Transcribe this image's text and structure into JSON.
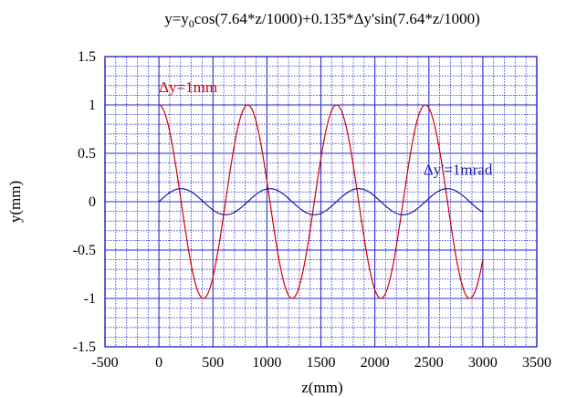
{
  "chart_data": {
    "type": "line",
    "title": {
      "pre": "y=y",
      "sub": "0",
      "post": "cos(7.64*z/1000)+0.135*Δy'sin(7.64*z/1000)"
    },
    "xlabel": "z(mm)",
    "ylabel": "y(mm)",
    "xlim": [
      -500,
      3500
    ],
    "ylim": [
      -1.5,
      1.5
    ],
    "xticks": [
      -500,
      0,
      500,
      1000,
      1500,
      2000,
      2500,
      3000,
      3500
    ],
    "xtick_labels": [
      "-500",
      "0",
      "500",
      "1000",
      "1500",
      "2000",
      "2500",
      "3000",
      "3500"
    ],
    "yticks": [
      -1.5,
      -1,
      -0.5,
      0,
      0.5,
      1,
      1.5
    ],
    "ytick_labels": [
      "-1.5",
      "-1",
      "-0.5",
      "0",
      "0.5",
      "1",
      "1.5"
    ],
    "grid": true,
    "grid_minor_step_x": 100,
    "grid_minor_step_y": 0.1,
    "frequency_per_mm": 0.00764,
    "x_domain": [
      0,
      3000
    ],
    "colors": {
      "frame": "#1a1acc",
      "grid": "#2a2ad4"
    },
    "series": [
      {
        "name": "Δy=1mm",
        "amplitude": 1.0,
        "function": "cos",
        "color": "#d40000"
      },
      {
        "name": "Δy'=1mrad",
        "amplitude": 0.135,
        "function": "sin",
        "color": "#1a1aa8"
      }
    ],
    "annotations": [
      {
        "text": "Δy=1mm",
        "series": 0,
        "at_x": 0,
        "at_y": 1.13,
        "color": "#d40000"
      },
      {
        "text": "Δy'=1mrad",
        "series": 1,
        "at_x": 2450,
        "at_y": 0.28,
        "color": "#1a1aa8"
      }
    ]
  }
}
